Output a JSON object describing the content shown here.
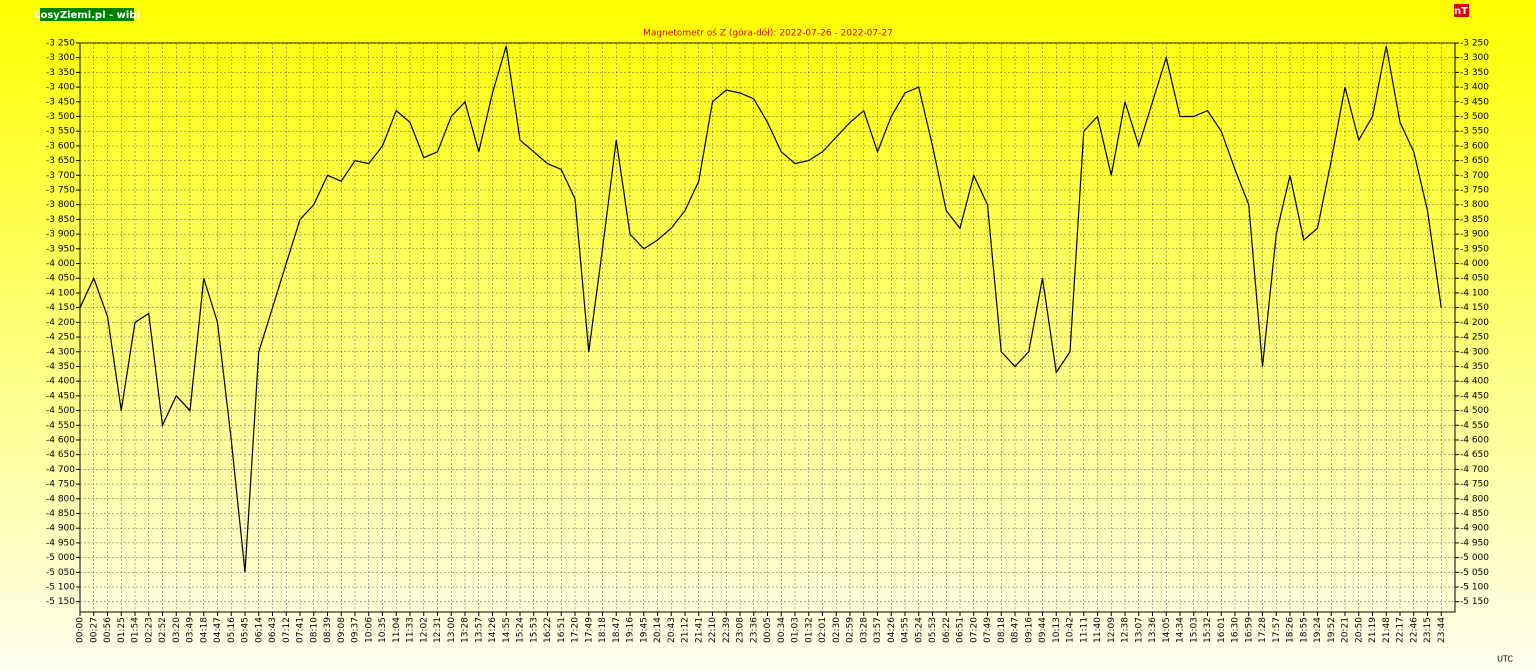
{
  "chart_data": {
    "type": "line",
    "title": "Magnetometr oś Z (góra-dół): 2022-07-26 - 2022-07-27",
    "badge": "LosyZiemi.pl - wibi",
    "unit": "nT",
    "x_label": "UTC",
    "color": "#000000",
    "grid": true,
    "categories": [
      "00:00",
      "00:27",
      "00:56",
      "01:25",
      "01:54",
      "02:23",
      "02:52",
      "03:20",
      "03:49",
      "04:18",
      "04:47",
      "05:16",
      "05:45",
      "06:14",
      "06:43",
      "07:12",
      "07:41",
      "08:10",
      "08:39",
      "09:08",
      "09:37",
      "10:06",
      "10:35",
      "11:04",
      "11:33",
      "12:02",
      "12:31",
      "13:00",
      "13:28",
      "13:57",
      "14:26",
      "14:55",
      "15:24",
      "15:53",
      "16:22",
      "16:51",
      "17:20",
      "17:49",
      "18:18",
      "18:47",
      "19:16",
      "19:45",
      "20:14",
      "20:43",
      "21:12",
      "21:41",
      "22:10",
      "22:39",
      "23:08",
      "23:36",
      "00:05",
      "00:34",
      "01:03",
      "01:32",
      "02:01",
      "02:30",
      "02:59",
      "03:28",
      "03:57",
      "04:26",
      "04:55",
      "05:24",
      "05:53",
      "06:22",
      "06:51",
      "07:20",
      "07:49",
      "08:18",
      "08:47",
      "09:16",
      "09:44",
      "10:13",
      "10:42",
      "11:11",
      "11:40",
      "12:09",
      "12:38",
      "13:07",
      "13:36",
      "14:05",
      "14:34",
      "15:03",
      "15:32",
      "16:01",
      "16:30",
      "16:59",
      "17:28",
      "17:57",
      "18:26",
      "18:55",
      "19:24",
      "19:52",
      "20:21",
      "20:50",
      "21:19",
      "21:48",
      "22:17",
      "22:46",
      "23:15",
      "23:44"
    ],
    "values": [
      -4150,
      -4050,
      -4180,
      -4500,
      -4200,
      -4170,
      -4550,
      -4450,
      -4500,
      -4050,
      -4200,
      -4600,
      -5050,
      -4300,
      -4150,
      -4000,
      -3850,
      -3800,
      -3700,
      -3720,
      -3650,
      -3660,
      -3600,
      -3480,
      -3520,
      -3640,
      -3620,
      -3500,
      -3450,
      -3620,
      -3420,
      -3260,
      -3580,
      -3620,
      -3660,
      -3680,
      -3780,
      -4300,
      -3950,
      -3580,
      -3900,
      -3950,
      -3920,
      -3880,
      -3820,
      -3720,
      -3450,
      -3410,
      -3420,
      -3440,
      -3520,
      -3620,
      -3660,
      -3650,
      -3620,
      -3570,
      -3520,
      -3480,
      -3620,
      -3500,
      -3420,
      -3400,
      -3600,
      -3820,
      -3880,
      -3700,
      -3800,
      -4300,
      -4350,
      -4300,
      -4050,
      -4370,
      -4300,
      -3550,
      -3500,
      -3700,
      -3450,
      -3600,
      -3450,
      -3300,
      -3500,
      -3500,
      -3480,
      -3550,
      -3680,
      -3800,
      -4350,
      -3900,
      -3700,
      -3920,
      -3880,
      -3650,
      -3400,
      -3580,
      -3500,
      -3260,
      -3520,
      -3620,
      -3820,
      -4150
    ],
    "ylim": [
      -5185,
      -3250
    ],
    "yticks": [
      {
        "value": -3250,
        "label": "-3 250"
      },
      {
        "value": -3300,
        "label": "-3 300"
      },
      {
        "value": -3350,
        "label": "-3 350"
      },
      {
        "value": -3400,
        "label": "-3 400"
      },
      {
        "value": -3450,
        "label": "-3 450"
      },
      {
        "value": -3500,
        "label": "-3 500"
      },
      {
        "value": -3550,
        "label": "-3 550"
      },
      {
        "value": -3600,
        "label": "-3 600"
      },
      {
        "value": -3650,
        "label": "-3 650"
      },
      {
        "value": -3700,
        "label": "-3 700"
      },
      {
        "value": -3750,
        "label": "-3 750"
      },
      {
        "value": -3800,
        "label": "-3 800"
      },
      {
        "value": -3850,
        "label": "-3 850"
      },
      {
        "value": -3900,
        "label": "-3 900"
      },
      {
        "value": -3950,
        "label": "-3 950"
      },
      {
        "value": -4000,
        "label": "-4 000"
      },
      {
        "value": -4050,
        "label": "-4 050"
      },
      {
        "value": -4100,
        "label": "-4 100"
      },
      {
        "value": -4150,
        "label": "-4 150"
      },
      {
        "value": -4200,
        "label": "-4 200"
      },
      {
        "value": -4250,
        "label": "-4 250"
      },
      {
        "value": -4300,
        "label": "-4 300"
      },
      {
        "value": -4350,
        "label": "-4 350"
      },
      {
        "value": -4400,
        "label": "-4 400"
      },
      {
        "value": -4450,
        "label": "-4 450"
      },
      {
        "value": -4500,
        "label": "-4 500"
      },
      {
        "value": -4550,
        "label": "-4 550"
      },
      {
        "value": -4600,
        "label": "-4 600"
      },
      {
        "value": -4650,
        "label": "-4 650"
      },
      {
        "value": -4700,
        "label": "-4 700"
      },
      {
        "value": -4750,
        "label": "-4 750"
      },
      {
        "value": -4800,
        "label": "-4 800"
      },
      {
        "value": -4850,
        "label": "-4 850"
      },
      {
        "value": -4900,
        "label": "-4 900"
      },
      {
        "value": -4950,
        "label": "-4 950"
      },
      {
        "value": -5000,
        "label": "-5 000"
      },
      {
        "value": -5050,
        "label": "-5 050"
      },
      {
        "value": -5100,
        "label": "-5 100"
      },
      {
        "value": -5150,
        "label": "-5 150"
      }
    ]
  }
}
